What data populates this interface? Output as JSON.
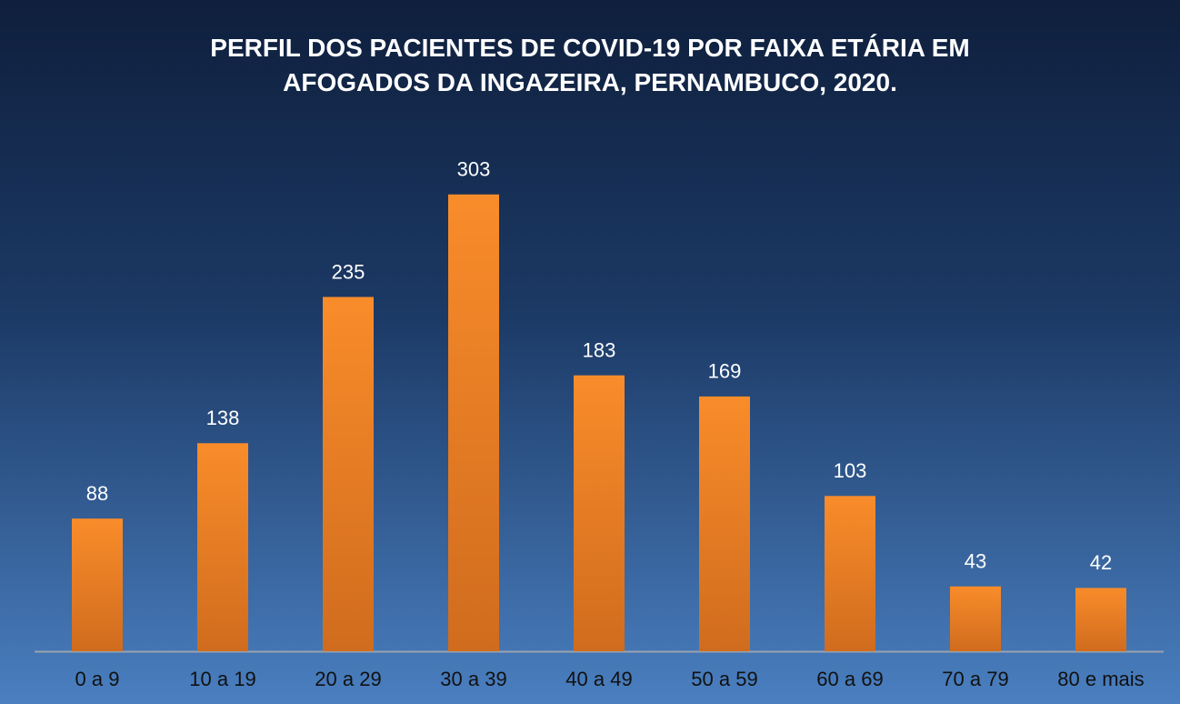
{
  "chart_data": {
    "type": "bar",
    "title": "PERFIL DOS PACIENTES DE COVID-19 POR FAIXA ETÁRIA EM AFOGADOS DA INGAZEIRA, PERNAMBUCO, 2020.",
    "categories": [
      "0 a 9",
      "10 a 19",
      "20 a 29",
      "30 a 39",
      "40 a 49",
      "50 a 59",
      "60 a 69",
      "70 a 79",
      "80 e mais"
    ],
    "values": [
      88,
      138,
      235,
      303,
      183,
      169,
      103,
      43,
      42
    ],
    "color": "#f98c2a",
    "ylim": [
      0,
      400
    ]
  }
}
